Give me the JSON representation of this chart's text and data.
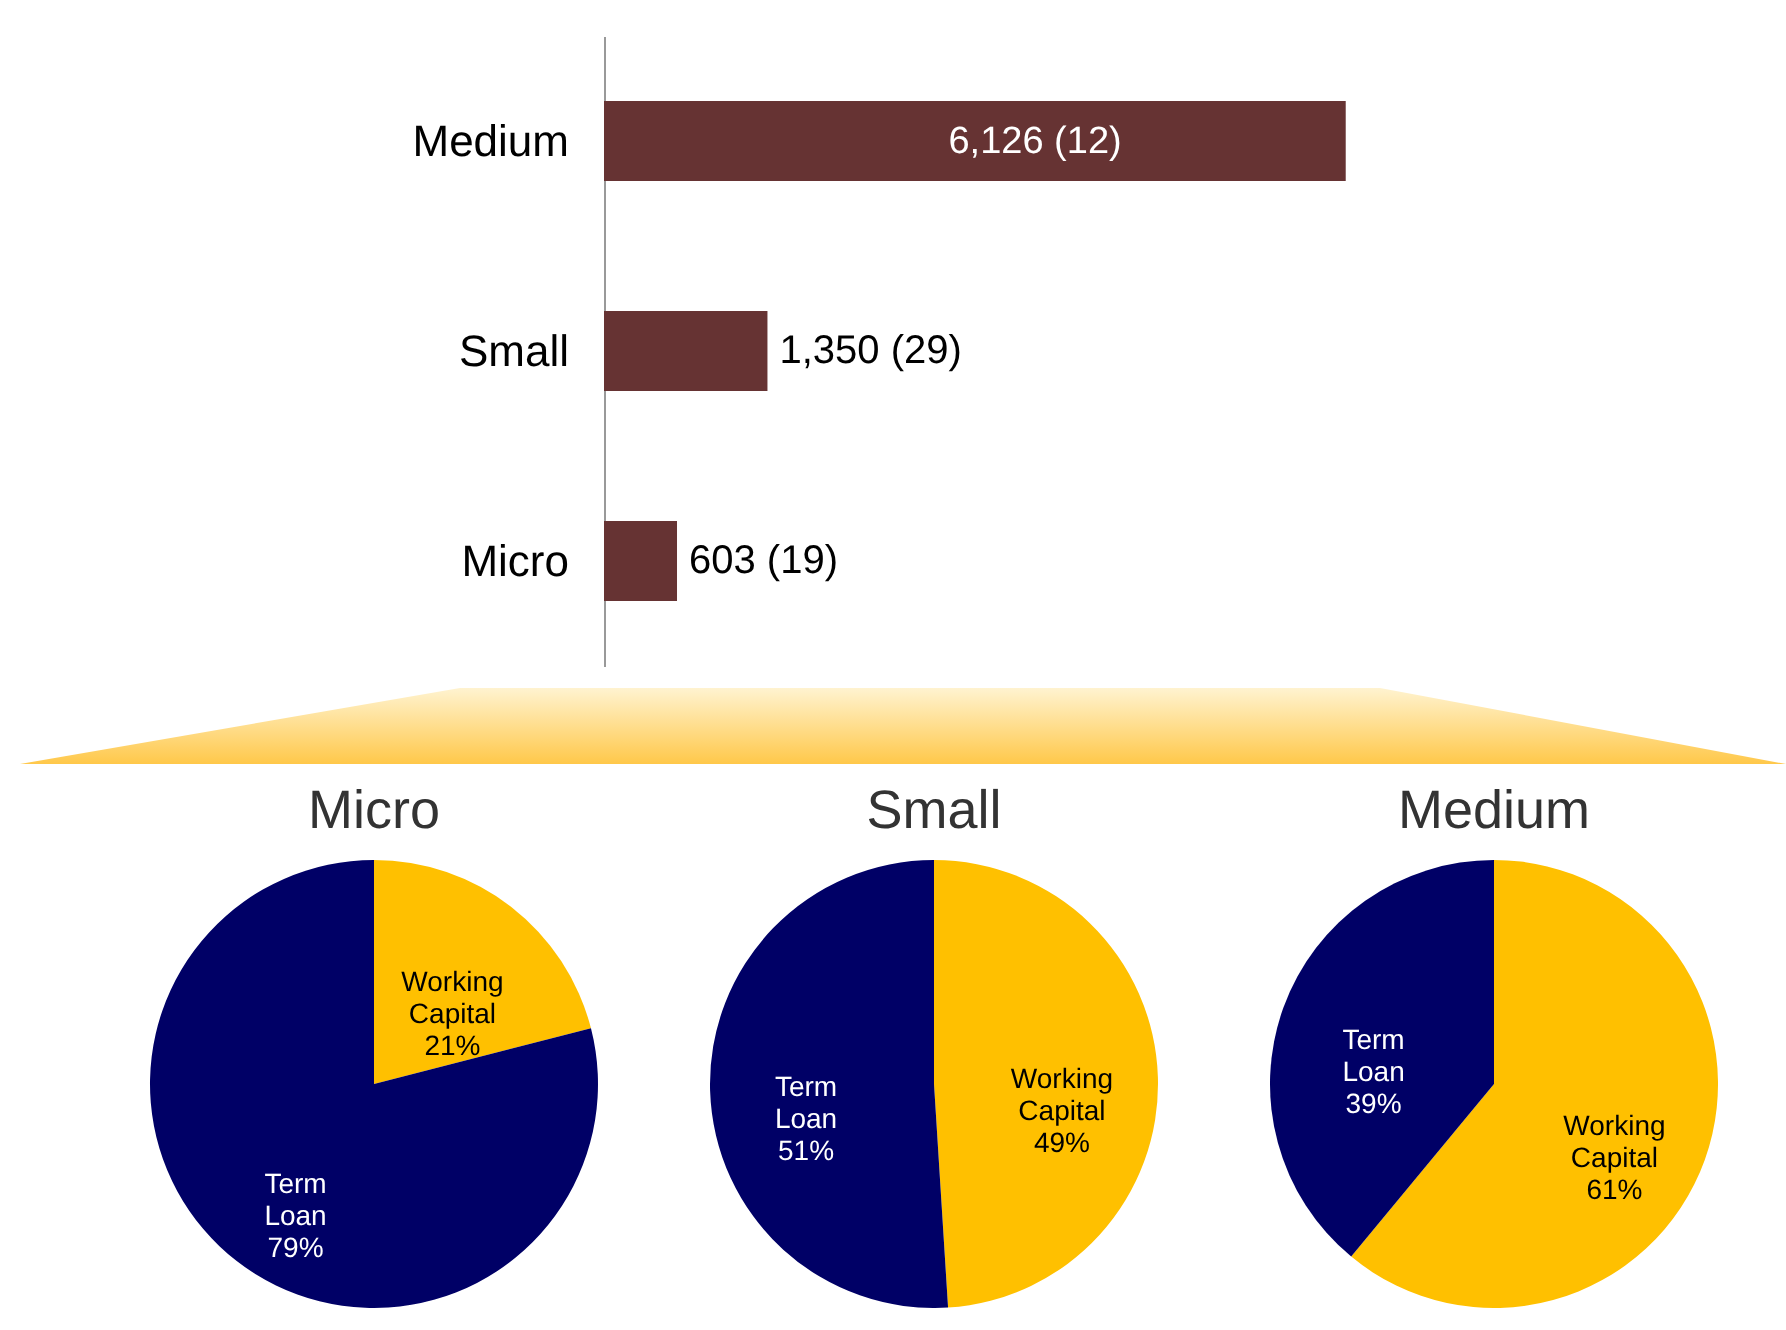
{
  "chart_data": [
    {
      "type": "bar",
      "orientation": "horizontal",
      "categories": [
        "Medium",
        "Small",
        "Micro"
      ],
      "values": [
        6126,
        1350,
        603
      ],
      "value_labels": [
        "6,126 (12)",
        "1,350 (29)",
        "603 (19)"
      ],
      "color": "#663333"
    },
    {
      "type": "pie",
      "title": "Micro",
      "categories": [
        "Working Capital",
        "Term Loan"
      ],
      "values": [
        21,
        79
      ],
      "colors": [
        "#ffc000",
        "#000066"
      ],
      "value_labels": [
        "21%",
        "79%"
      ]
    },
    {
      "type": "pie",
      "title": "Small",
      "categories": [
        "Working Capital",
        "Term Loan"
      ],
      "values": [
        49,
        51
      ],
      "colors": [
        "#ffc000",
        "#000066"
      ],
      "value_labels": [
        "49%",
        "51%"
      ]
    },
    {
      "type": "pie",
      "title": "Medium",
      "categories": [
        "Working Capital",
        "Term Loan"
      ],
      "values": [
        61,
        39
      ],
      "colors": [
        "#ffc000",
        "#000066"
      ],
      "value_labels": [
        "61%",
        "39%"
      ]
    }
  ]
}
